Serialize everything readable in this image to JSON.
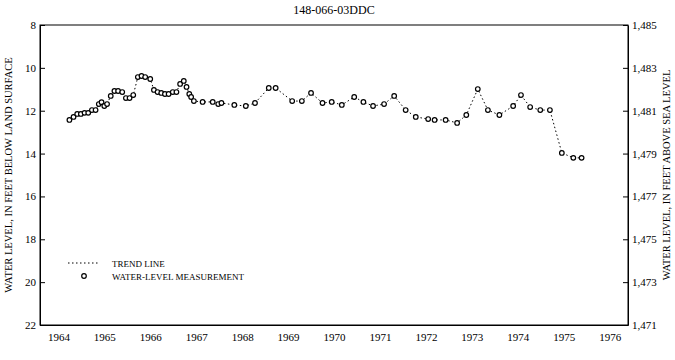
{
  "chart_data": {
    "type": "line",
    "title": "148-066-03DDC",
    "y_label": "WATER LEVEL, IN FEET BELOW LAND SURFACE",
    "y2_label": "WATER LEVEL, IN FEET ABOVE SEA LEVEL",
    "x": [
      1964.74,
      1964.83,
      1964.91,
      1964.99,
      1965.07,
      1965.15,
      1965.23,
      1965.31,
      1965.38,
      1965.44,
      1965.5,
      1965.56,
      1965.64,
      1965.72,
      1965.8,
      1965.89,
      1965.97,
      1966.05,
      1966.13,
      1966.23,
      1966.31,
      1966.39,
      1966.5,
      1966.58,
      1966.66,
      1966.74,
      1966.82,
      1966.9,
      1966.99,
      1967.07,
      1967.15,
      1967.23,
      1967.29,
      1967.35,
      1967.39,
      1967.45,
      1967.64,
      1967.86,
      1967.98,
      1968.05,
      1968.33,
      1968.58,
      1968.78,
      1969.08,
      1969.23,
      1969.59,
      1969.8,
      1970.0,
      1970.25,
      1970.45,
      1970.67,
      1970.94,
      1971.14,
      1971.35,
      1971.59,
      1971.81,
      1972.06,
      1972.28,
      1972.55,
      1972.69,
      1972.93,
      1973.18,
      1973.38,
      1973.63,
      1973.85,
      1974.1,
      1974.4,
      1974.57,
      1974.77,
      1974.99,
      1975.2,
      1975.46,
      1975.71,
      1975.89
    ],
    "series": [
      {
        "name": "TREND LINE",
        "type": "line",
        "line_style": "dotted",
        "color": "#000000",
        "values": [
          12.43,
          12.29,
          12.15,
          12.15,
          12.1,
          12.1,
          11.97,
          11.97,
          11.69,
          11.6,
          11.78,
          11.69,
          11.31,
          11.08,
          11.08,
          11.13,
          11.41,
          11.41,
          11.27,
          10.43,
          10.38,
          10.43,
          10.52,
          11.03,
          11.13,
          11.17,
          11.22,
          11.22,
          11.13,
          11.13,
          10.75,
          10.61,
          10.89,
          11.22,
          11.36,
          11.55,
          11.59,
          11.59,
          11.69,
          11.64,
          11.73,
          11.78,
          11.64,
          10.94,
          10.94,
          11.55,
          11.55,
          11.17,
          11.64,
          11.59,
          11.73,
          11.36,
          11.59,
          11.78,
          11.69,
          11.31,
          11.97,
          12.29,
          12.39,
          12.43,
          12.43,
          12.57,
          12.2,
          10.99,
          11.97,
          12.2,
          11.78,
          11.27,
          11.83,
          11.97,
          11.97,
          13.97,
          14.2,
          14.2
        ]
      },
      {
        "name": "WATER-LEVEL MEASUREMENT",
        "type": "scatter",
        "marker": "circle",
        "color": "#000000",
        "values": [
          12.43,
          12.29,
          12.15,
          12.15,
          12.1,
          12.1,
          11.97,
          11.97,
          11.69,
          11.6,
          11.78,
          11.69,
          11.31,
          11.08,
          11.08,
          11.13,
          11.41,
          11.41,
          11.27,
          10.43,
          10.38,
          10.43,
          10.52,
          11.03,
          11.13,
          11.17,
          11.22,
          11.22,
          11.13,
          11.13,
          10.75,
          10.61,
          10.89,
          11.22,
          11.36,
          11.55,
          11.59,
          11.59,
          11.69,
          11.64,
          11.73,
          11.78,
          11.64,
          10.94,
          10.94,
          11.55,
          11.55,
          11.17,
          11.64,
          11.59,
          11.73,
          11.36,
          11.59,
          11.78,
          11.69,
          11.31,
          11.97,
          12.29,
          12.39,
          12.43,
          12.43,
          12.57,
          12.2,
          10.99,
          11.97,
          12.2,
          11.78,
          11.27,
          11.83,
          11.97,
          11.97,
          13.97,
          14.2,
          14.2
        ]
      }
    ],
    "xlim": [
      1964.1,
      1976.9
    ],
    "xticks": [
      {
        "value": 1964.5,
        "label": "1964"
      },
      {
        "value": 1965.5,
        "label": "1965"
      },
      {
        "value": 1966.5,
        "label": "1966"
      },
      {
        "value": 1967.5,
        "label": "1967"
      },
      {
        "value": 1968.5,
        "label": "1968"
      },
      {
        "value": 1969.5,
        "label": "1969"
      },
      {
        "value": 1970.5,
        "label": "1970"
      },
      {
        "value": 1971.5,
        "label": "1971"
      },
      {
        "value": 1972.5,
        "label": "1972"
      },
      {
        "value": 1973.5,
        "label": "1973"
      },
      {
        "value": 1974.5,
        "label": "1974"
      },
      {
        "value": 1975.5,
        "label": "1975"
      },
      {
        "value": 1976.5,
        "label": "1976"
      }
    ],
    "ylim": [
      22,
      8
    ],
    "yticks": [
      8,
      10,
      12,
      14,
      16,
      18,
      20,
      22
    ],
    "y2lim": [
      1471,
      1485
    ],
    "y2ticks": [
      {
        "value": 1471,
        "label": "1,471"
      },
      {
        "value": 1473,
        "label": "1,473"
      },
      {
        "value": 1475,
        "label": "1,475"
      },
      {
        "value": 1477,
        "label": "1,477"
      },
      {
        "value": 1479,
        "label": "1,479"
      },
      {
        "value": 1481,
        "label": "1,481"
      },
      {
        "value": 1483,
        "label": "1,483"
      },
      {
        "value": 1485,
        "label": "1,485"
      }
    ],
    "grid": false,
    "legend": "lower left"
  }
}
